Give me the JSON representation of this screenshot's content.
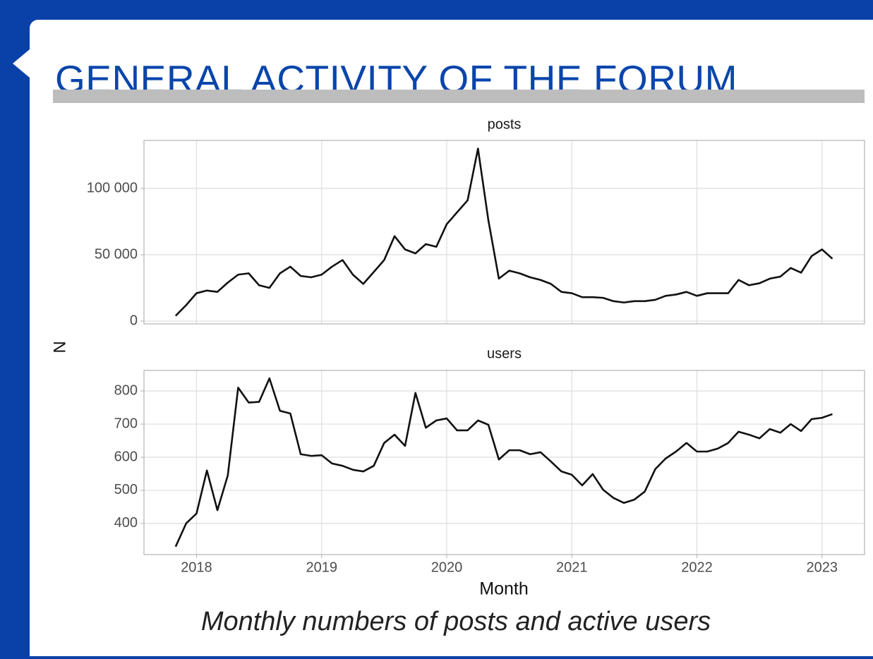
{
  "slide": {
    "title": "GENERAL ACTIVITY OF THE FORUM",
    "caption": "Monthly numbers of posts and active users",
    "ylabel": "N",
    "xlabel": "Month"
  },
  "chart_data": [
    {
      "type": "line",
      "title": "posts",
      "color": "#111111",
      "grid": true,
      "x": [
        2017.833,
        2017.917,
        2018,
        2018.083,
        2018.167,
        2018.25,
        2018.333,
        2018.417,
        2018.5,
        2018.583,
        2018.667,
        2018.75,
        2018.833,
        2018.917,
        2019,
        2019.083,
        2019.167,
        2019.25,
        2019.333,
        2019.417,
        2019.5,
        2019.583,
        2019.667,
        2019.75,
        2019.833,
        2019.917,
        2020,
        2020.083,
        2020.167,
        2020.25,
        2020.333,
        2020.417,
        2020.5,
        2020.583,
        2020.667,
        2020.75,
        2020.833,
        2020.917,
        2021,
        2021.083,
        2021.167,
        2021.25,
        2021.333,
        2021.417,
        2021.5,
        2021.583,
        2021.667,
        2021.75,
        2021.833,
        2021.917,
        2022,
        2022.083,
        2022.167,
        2022.25,
        2022.333,
        2022.417,
        2022.5,
        2022.583,
        2022.667,
        2022.75,
        2022.833,
        2022.917,
        2023,
        2023.083
      ],
      "values": [
        4000,
        12000,
        21000,
        23000,
        22000,
        29000,
        35000,
        36000,
        27000,
        25000,
        36000,
        41000,
        34000,
        33000,
        35000,
        41000,
        46000,
        35000,
        28000,
        37000,
        46000,
        64000,
        54000,
        51000,
        58000,
        56000,
        73000,
        82000,
        91000,
        130000,
        76000,
        32000,
        38000,
        36000,
        33000,
        31000,
        28000,
        22000,
        21000,
        18000,
        18000,
        17500,
        15000,
        14000,
        15000,
        15000,
        16000,
        19000,
        20000,
        22000,
        19000,
        21000,
        21000,
        21000,
        31000,
        27000,
        28500,
        32000,
        33500,
        40000,
        36500,
        49000,
        54000,
        47000
      ],
      "xlim": [
        2017.58,
        2023.34
      ],
      "xticks": [
        2018,
        2019,
        2020,
        2021,
        2022,
        2023
      ],
      "ylim": [
        -2100,
        136170
      ],
      "yticks": [
        0,
        {
          "value": 50000,
          "label": "50 000"
        },
        {
          "value": 100000,
          "label": "100 000"
        }
      ]
    },
    {
      "type": "line",
      "title": "users",
      "color": "#111111",
      "grid": true,
      "x": [
        2017.833,
        2017.917,
        2018,
        2018.083,
        2018.167,
        2018.25,
        2018.333,
        2018.417,
        2018.5,
        2018.583,
        2018.667,
        2018.75,
        2018.833,
        2018.917,
        2019,
        2019.083,
        2019.167,
        2019.25,
        2019.333,
        2019.417,
        2019.5,
        2019.583,
        2019.667,
        2019.75,
        2019.833,
        2019.917,
        2020,
        2020.083,
        2020.167,
        2020.25,
        2020.333,
        2020.417,
        2020.5,
        2020.583,
        2020.667,
        2020.75,
        2020.833,
        2020.917,
        2021,
        2021.083,
        2021.167,
        2021.25,
        2021.333,
        2021.417,
        2021.5,
        2021.583,
        2021.667,
        2021.75,
        2021.833,
        2021.917,
        2022,
        2022.083,
        2022.167,
        2022.25,
        2022.333,
        2022.417,
        2022.5,
        2022.583,
        2022.667,
        2022.75,
        2022.833,
        2022.917,
        2023,
        2023.083
      ],
      "values": [
        330,
        400,
        430,
        560,
        440,
        545,
        810,
        765,
        767,
        838,
        740,
        732,
        609,
        604,
        606,
        581,
        574,
        562,
        557,
        574,
        643,
        668,
        634,
        794,
        689,
        711,
        717,
        681,
        681,
        711,
        698,
        593,
        621,
        621,
        609,
        615,
        587,
        557,
        547,
        515,
        549,
        502,
        477,
        462,
        472,
        496,
        564,
        596,
        617,
        643,
        617,
        617,
        626,
        643,
        677,
        668,
        657,
        685,
        674,
        700,
        679,
        715,
        719,
        730
      ],
      "xlim": [
        2017.58,
        2023.34
      ],
      "xticks": [
        2018,
        2019,
        2020,
        2021,
        2022,
        2023
      ],
      "ylim": [
        306,
        862
      ],
      "yticks": [
        400,
        500,
        600,
        700,
        800
      ]
    }
  ]
}
